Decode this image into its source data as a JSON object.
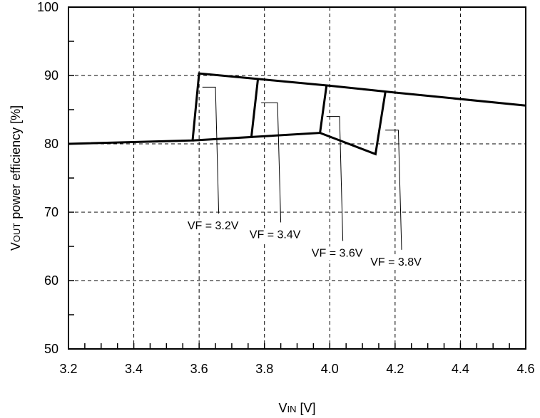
{
  "chart_data": {
    "type": "line",
    "title": "",
    "xlabel": {
      "main": "V",
      "sub": "IN",
      "unit": " [V]"
    },
    "ylabel": {
      "main": "V",
      "sub": "OUT",
      "rest": " power efficiency [%]"
    },
    "xlim": [
      3.2,
      4.6
    ],
    "ylim": [
      50,
      100
    ],
    "x_ticks": [
      3.2,
      3.4,
      3.6,
      3.8,
      4.0,
      4.2,
      4.4,
      4.6
    ],
    "x_tick_labels": [
      "3.2",
      "3.4",
      "3.6",
      "3.8",
      "4.0",
      "4.2",
      "4.4",
      "4.6"
    ],
    "y_ticks": [
      50,
      60,
      70,
      80,
      90,
      100
    ],
    "y_tick_labels": [
      "50",
      "60",
      "70",
      "80",
      "90",
      "100"
    ],
    "grid": true,
    "series": [
      {
        "values": [
          [
            3.2,
            80.0
          ],
          [
            3.58,
            80.5
          ],
          [
            3.6,
            90.3
          ],
          [
            3.8,
            89.4
          ],
          [
            4.0,
            88.5
          ],
          [
            4.2,
            87.5
          ],
          [
            4.6,
            85.6
          ]
        ]
      },
      {
        "values": [
          [
            3.58,
            80.5
          ],
          [
            3.76,
            81.0
          ],
          [
            3.78,
            89.5
          ]
        ]
      },
      {
        "values": [
          [
            3.76,
            81.0
          ],
          [
            3.97,
            81.6
          ],
          [
            3.99,
            88.5
          ]
        ]
      },
      {
        "values": [
          [
            3.97,
            81.6
          ],
          [
            4.14,
            78.5
          ],
          [
            4.17,
            87.5
          ]
        ]
      }
    ],
    "annotations": [
      {
        "text": "VF = 3.2V",
        "point": [
          3.61,
          88.3
        ],
        "bend_x": 3.65,
        "end": [
          3.66,
          69.8
        ]
      },
      {
        "text": "VF = 3.4V",
        "point": [
          3.79,
          86.0
        ],
        "bend_x": 3.84,
        "end": [
          3.85,
          68.5
        ]
      },
      {
        "text": "VF = 3.6V",
        "point": [
          3.99,
          84.0
        ],
        "bend_x": 4.03,
        "end": [
          4.04,
          65.8
        ]
      },
      {
        "text": "VF = 3.8V",
        "point": [
          4.17,
          82.0
        ],
        "bend_x": 4.21,
        "end": [
          4.22,
          64.5
        ]
      }
    ]
  }
}
